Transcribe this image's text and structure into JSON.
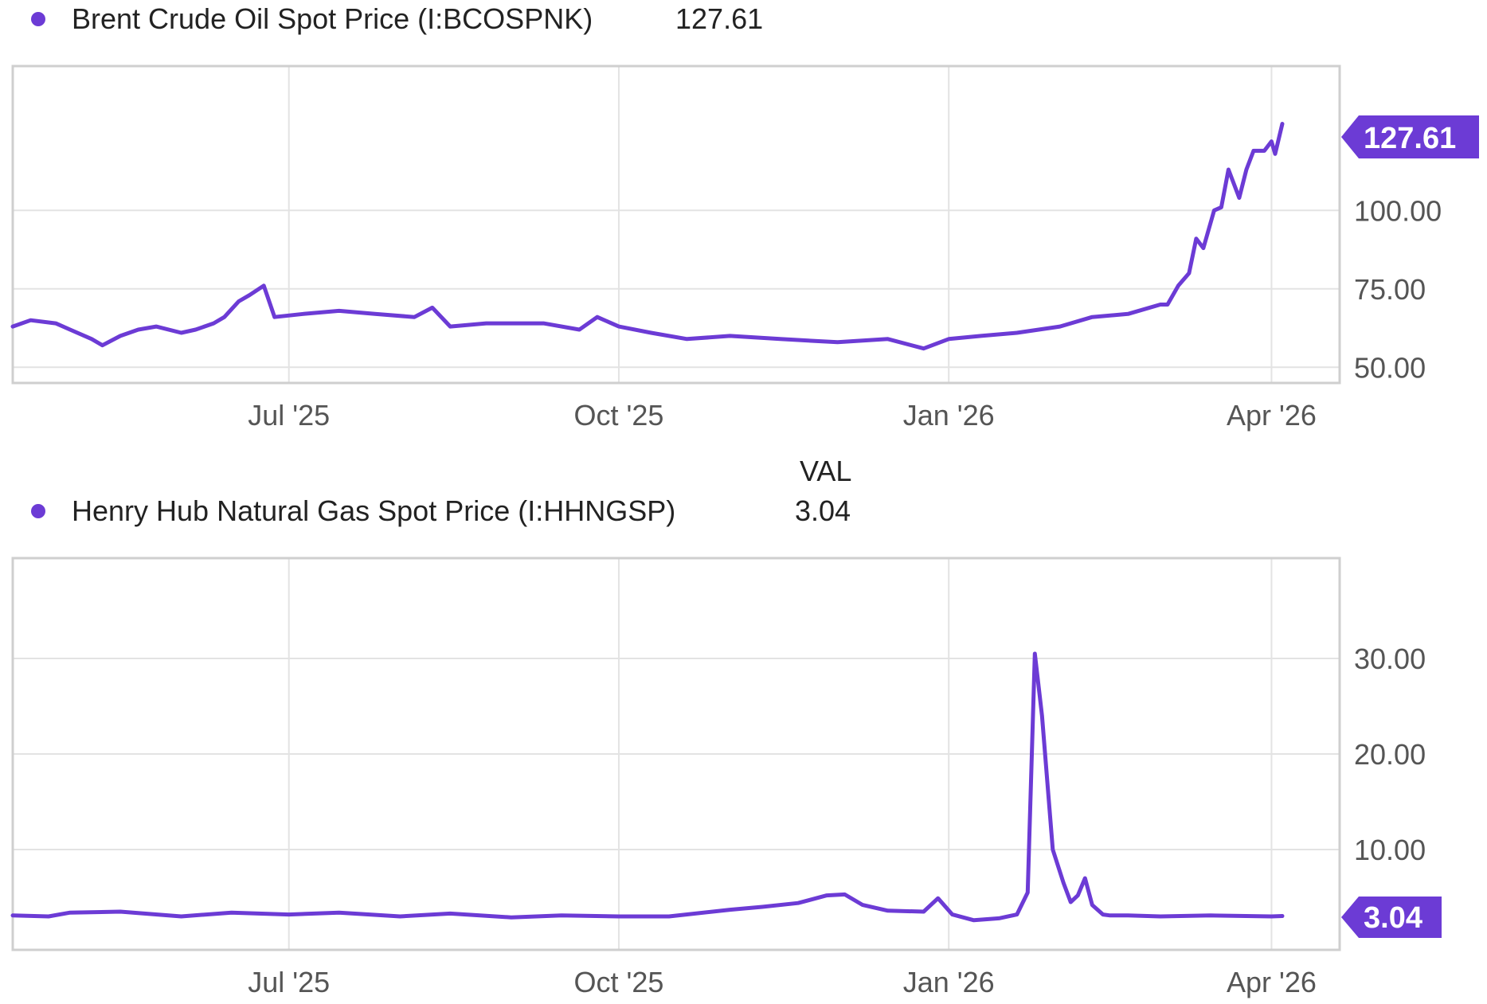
{
  "colors": {
    "series": "#6c3bd5",
    "grid": "#e3e3e3",
    "frame": "#cfcfcf",
    "text": "#222222",
    "tick": "#555555"
  },
  "chart_data": [
    {
      "type": "line",
      "legend": {
        "label": "Brent Crude Oil Spot Price (I:BCOSPNK)",
        "value": "127.61"
      },
      "current_value_label": "127.61",
      "x_ticks": [
        "Jul '25",
        "Oct '25",
        "Jan '26",
        "Apr '26"
      ],
      "x_tick_dates": [
        "2025-07-01",
        "2025-10-01",
        "2026-01-01",
        "2026-04-01"
      ],
      "y_ticks": [
        "50.00",
        "75.00",
        "100.00"
      ],
      "y_tick_values": [
        50,
        75,
        100
      ],
      "ylim": [
        45,
        146
      ],
      "xlim": [
        "2025-04-15",
        "2026-04-20"
      ],
      "grid": true,
      "series": [
        {
          "x": [
            "2025-04-15",
            "2025-04-20",
            "2025-04-27",
            "2025-05-01",
            "2025-05-07",
            "2025-05-10",
            "2025-05-15",
            "2025-05-20",
            "2025-05-25",
            "2025-06-01",
            "2025-06-05",
            "2025-06-10",
            "2025-06-13",
            "2025-06-17",
            "2025-06-20",
            "2025-06-24",
            "2025-06-27",
            "2025-07-05",
            "2025-07-15",
            "2025-07-25",
            "2025-08-05",
            "2025-08-10",
            "2025-08-15",
            "2025-08-25",
            "2025-09-10",
            "2025-09-20",
            "2025-09-25",
            "2025-10-01",
            "2025-10-10",
            "2025-10-20",
            "2025-11-01",
            "2025-11-15",
            "2025-12-01",
            "2025-12-15",
            "2025-12-25",
            "2026-01-01",
            "2026-01-10",
            "2026-01-20",
            "2026-02-01",
            "2026-02-10",
            "2026-02-20",
            "2026-03-01",
            "2026-03-03",
            "2026-03-06",
            "2026-03-09",
            "2026-03-11",
            "2026-03-13",
            "2026-03-16",
            "2026-03-18",
            "2026-03-20",
            "2026-03-23",
            "2026-03-25",
            "2026-03-27",
            "2026-03-30",
            "2026-04-01",
            "2026-04-02",
            "2026-04-04"
          ],
          "y": [
            63,
            65,
            64,
            62,
            59,
            57,
            60,
            62,
            63,
            61,
            62,
            64,
            66,
            71,
            73,
            76,
            66,
            67,
            68,
            67,
            66,
            69,
            63,
            64,
            64,
            62,
            66,
            63,
            61,
            59,
            60,
            59,
            58,
            59,
            56,
            59,
            60,
            61,
            63,
            66,
            67,
            70,
            70,
            76,
            80,
            91,
            88,
            100,
            101,
            113,
            104,
            113,
            119,
            119,
            122,
            118,
            127.61
          ]
        }
      ]
    },
    {
      "type": "line",
      "legend": {
        "label": "Henry Hub Natural Gas Spot Price (I:HHNGSP)",
        "value": "3.04"
      },
      "column_header": "VAL",
      "current_value_label": "3.04",
      "x_ticks": [
        "Jul '25",
        "Oct '25",
        "Jan '26",
        "Apr '26"
      ],
      "x_tick_dates": [
        "2025-07-01",
        "2025-10-01",
        "2026-01-01",
        "2026-04-01"
      ],
      "y_ticks": [
        "10.00",
        "20.00",
        "30.00"
      ],
      "y_tick_values": [
        10,
        20,
        30
      ],
      "ylim": [
        -0.5,
        40.5
      ],
      "xlim": [
        "2025-04-15",
        "2026-04-20"
      ],
      "grid": true,
      "series": [
        {
          "x": [
            "2025-04-15",
            "2025-04-25",
            "2025-05-01",
            "2025-05-15",
            "2025-06-01",
            "2025-06-15",
            "2025-07-01",
            "2025-07-15",
            "2025-08-01",
            "2025-08-15",
            "2025-09-01",
            "2025-09-15",
            "2025-10-01",
            "2025-10-15",
            "2025-11-01",
            "2025-11-10",
            "2025-11-20",
            "2025-11-28",
            "2025-12-03",
            "2025-12-08",
            "2025-12-15",
            "2025-12-25",
            "2025-12-29",
            "2026-01-02",
            "2026-01-08",
            "2026-01-15",
            "2026-01-20",
            "2026-01-23",
            "2026-01-25",
            "2026-01-27",
            "2026-01-30",
            "2026-02-02",
            "2026-02-04",
            "2026-02-06",
            "2026-02-08",
            "2026-02-10",
            "2026-02-13",
            "2026-02-15",
            "2026-02-18",
            "2026-02-20",
            "2026-03-01",
            "2026-03-15",
            "2026-04-01",
            "2026-04-04"
          ],
          "y": [
            3.1,
            3.0,
            3.4,
            3.5,
            3.0,
            3.4,
            3.2,
            3.4,
            3.0,
            3.3,
            2.9,
            3.1,
            3.0,
            3.0,
            3.7,
            4.0,
            4.4,
            5.2,
            5.3,
            4.2,
            3.6,
            3.5,
            4.9,
            3.2,
            2.6,
            2.8,
            3.2,
            5.5,
            30.5,
            24,
            10,
            6.5,
            4.5,
            5.2,
            7.0,
            4.2,
            3.2,
            3.1,
            3.1,
            3.1,
            3.0,
            3.1,
            3.0,
            3.04
          ]
        }
      ]
    }
  ]
}
